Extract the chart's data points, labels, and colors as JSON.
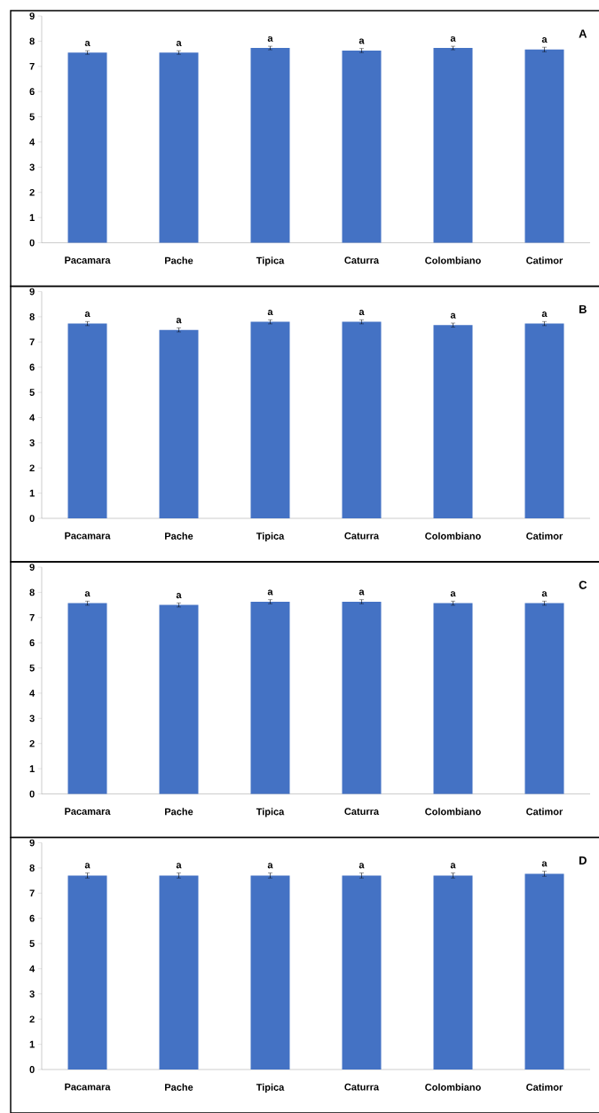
{
  "chart_data": [
    {
      "type": "bar",
      "title": "A",
      "categories": [
        "Pacamara",
        "Pache",
        "Tipica",
        "Caturra",
        "Colombiano",
        "Catimor"
      ],
      "values": [
        7.55,
        7.55,
        7.73,
        7.63,
        7.73,
        7.67
      ],
      "errors": [
        0.07,
        0.07,
        0.07,
        0.08,
        0.07,
        0.09
      ],
      "color": "#4472c4",
      "ylim": [
        0,
        9
      ],
      "yticks": [
        0,
        1,
        2,
        3,
        4,
        5,
        6,
        7,
        8,
        9
      ],
      "grid": false,
      "annotations": [
        {
          "text": "a",
          "x": "Pacamara",
          "y": 7.55
        },
        {
          "text": "a",
          "x": "Pache",
          "y": 7.55
        },
        {
          "text": "a",
          "x": "Tipica",
          "y": 7.73
        },
        {
          "text": "a",
          "x": "Caturra",
          "y": 7.63
        },
        {
          "text": "a",
          "x": "Colombiano",
          "y": 7.73
        },
        {
          "text": "a",
          "x": "Catimor",
          "y": 7.67
        }
      ]
    },
    {
      "type": "bar",
      "title": "B",
      "categories": [
        "Pacamara",
        "Pache",
        "Tipica",
        "Caturra",
        "Colombiano",
        "Catimor"
      ],
      "values": [
        7.73,
        7.48,
        7.8,
        7.8,
        7.67,
        7.73
      ],
      "errors": [
        0.08,
        0.08,
        0.08,
        0.08,
        0.08,
        0.08
      ],
      "color": "#4472c4",
      "ylim": [
        0,
        9
      ],
      "yticks": [
        0,
        1,
        2,
        3,
        4,
        5,
        6,
        7,
        8,
        9
      ],
      "grid": false,
      "annotations": [
        {
          "text": "a",
          "x": "Pacamara",
          "y": 7.73
        },
        {
          "text": "a",
          "x": "Pache",
          "y": 7.48
        },
        {
          "text": "a",
          "x": "Tipica",
          "y": 7.8
        },
        {
          "text": "a",
          "x": "Caturra",
          "y": 7.8
        },
        {
          "text": "a",
          "x": "Colombiano",
          "y": 7.67
        },
        {
          "text": "a",
          "x": "Catimor",
          "y": 7.73
        }
      ]
    },
    {
      "type": "bar",
      "title": "C",
      "categories": [
        "Pacamara",
        "Pache",
        "Tipica",
        "Caturra",
        "Colombiano",
        "Catimor"
      ],
      "values": [
        7.57,
        7.5,
        7.63,
        7.63,
        7.57,
        7.57
      ],
      "errors": [
        0.08,
        0.08,
        0.08,
        0.08,
        0.08,
        0.08
      ],
      "color": "#4472c4",
      "ylim": [
        0,
        9
      ],
      "yticks": [
        0,
        1,
        2,
        3,
        4,
        5,
        6,
        7,
        8,
        9
      ],
      "grid": false,
      "annotations": [
        {
          "text": "a",
          "x": "Pacamara",
          "y": 7.57
        },
        {
          "text": "a",
          "x": "Pache",
          "y": 7.5
        },
        {
          "text": "a",
          "x": "Tipica",
          "y": 7.63
        },
        {
          "text": "a",
          "x": "Caturra",
          "y": 7.63
        },
        {
          "text": "a",
          "x": "Colombiano",
          "y": 7.57
        },
        {
          "text": "a",
          "x": "Catimor",
          "y": 7.57
        }
      ]
    },
    {
      "type": "bar",
      "title": "D",
      "categories": [
        "Pacamara",
        "Pache",
        "Tipica",
        "Caturra",
        "Colombiano",
        "Catimor"
      ],
      "values": [
        7.7,
        7.7,
        7.7,
        7.7,
        7.7,
        7.77
      ],
      "errors": [
        0.1,
        0.1,
        0.1,
        0.1,
        0.1,
        0.1
      ],
      "color": "#4472c4",
      "ylim": [
        0,
        9
      ],
      "yticks": [
        0,
        1,
        2,
        3,
        4,
        5,
        6,
        7,
        8,
        9
      ],
      "grid": false,
      "annotations": [
        {
          "text": "a",
          "x": "Pacamara",
          "y": 7.7
        },
        {
          "text": "a",
          "x": "Pache",
          "y": 7.7
        },
        {
          "text": "a",
          "x": "Tipica",
          "y": 7.7
        },
        {
          "text": "a",
          "x": "Caturra",
          "y": 7.7
        },
        {
          "text": "a",
          "x": "Colombiano",
          "y": 7.7
        },
        {
          "text": "a",
          "x": "Catimor",
          "y": 7.77
        }
      ]
    }
  ]
}
